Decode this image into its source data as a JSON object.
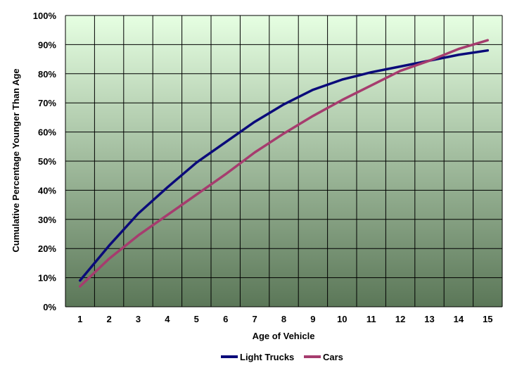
{
  "chart_data": {
    "type": "line",
    "title": "",
    "xlabel": "Age of Vehicle",
    "ylabel": "Cumulative Percentage Younger Than Age",
    "x": [
      1,
      2,
      3,
      4,
      5,
      6,
      7,
      8,
      9,
      10,
      11,
      12,
      13,
      14,
      15
    ],
    "x_tick_labels": [
      "1",
      "2",
      "3",
      "4",
      "5",
      "6",
      "7",
      "8",
      "9",
      "10",
      "11",
      "12",
      "13",
      "14",
      "15"
    ],
    "y_tick_labels": [
      "0%",
      "10%",
      "20%",
      "30%",
      "40%",
      "50%",
      "60%",
      "70%",
      "80%",
      "90%",
      "100%"
    ],
    "ylim": [
      0,
      100
    ],
    "y_unit": "%",
    "grid": true,
    "legend_position": "bottom-center",
    "series": [
      {
        "name": "Light Trucks",
        "color": "#0a0a7a",
        "values": [
          9,
          21,
          32,
          41,
          49.5,
          56.5,
          63.5,
          69.5,
          74.5,
          78,
          80.5,
          82.5,
          84.5,
          86.5,
          88
        ]
      },
      {
        "name": "Cars",
        "color": "#a63c6e",
        "values": [
          7,
          16.5,
          24.5,
          31.5,
          38.5,
          45.5,
          53,
          59.5,
          65.5,
          71,
          76,
          81,
          84.5,
          88.5,
          91.5
        ]
      }
    ],
    "plot_background_gradient": [
      "#e6ffe2",
      "#5b7758"
    ],
    "grid_color": "#000000"
  }
}
